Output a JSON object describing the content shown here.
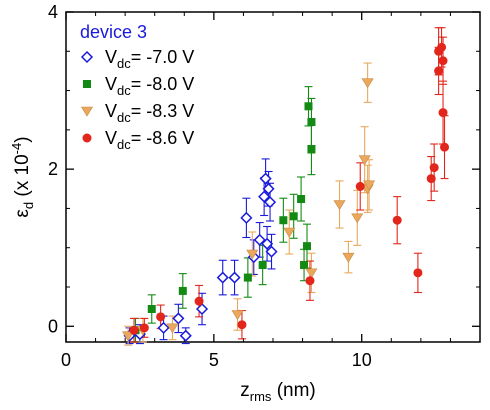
{
  "chart_data": {
    "type": "scatter",
    "title": "",
    "xlabel": {
      "main": "z",
      "sub": "rms",
      "rest": " (nm)"
    },
    "ylabel": {
      "main": "ε",
      "sub": "d",
      "rest": " (x 10",
      "sup": "-4",
      "close": ")"
    },
    "xlim": [
      0,
      14
    ],
    "ylim": [
      -0.2,
      4
    ],
    "xticks": [
      0,
      5,
      10
    ],
    "yticks": [
      0,
      2,
      4
    ],
    "xtick_labels": [
      "0",
      "5",
      "10"
    ],
    "ytick_labels": [
      "0",
      "2",
      "4"
    ],
    "grid": false,
    "legend": {
      "placement": "top-left",
      "header": "device 3",
      "header_color": "#1a1adb"
    },
    "series": [
      {
        "legend_main": "V",
        "legend_sub": "dc",
        "legend_rest": "= -7.0 V",
        "marker": "diamond-open",
        "color": "#1a1adb",
        "points": [
          {
            "x": 2.15,
            "y": -0.12,
            "err": 0.1
          },
          {
            "x": 2.5,
            "y": -0.1,
            "err": 0.12
          },
          {
            "x": 3.3,
            "y": -0.02,
            "err": 0.15
          },
          {
            "x": 3.8,
            "y": 0.1,
            "err": 0.18
          },
          {
            "x": 4.05,
            "y": -0.12,
            "err": 0.1
          },
          {
            "x": 4.6,
            "y": 0.22,
            "err": 0.2
          },
          {
            "x": 5.3,
            "y": 0.62,
            "err": 0.22
          },
          {
            "x": 5.7,
            "y": 0.62,
            "err": 0.22
          },
          {
            "x": 6.1,
            "y": 1.38,
            "err": 0.25
          },
          {
            "x": 6.35,
            "y": 0.88,
            "err": 0.22
          },
          {
            "x": 6.55,
            "y": 1.1,
            "err": 0.22
          },
          {
            "x": 6.7,
            "y": 1.65,
            "err": 0.24
          },
          {
            "x": 6.75,
            "y": 1.88,
            "err": 0.25
          },
          {
            "x": 6.8,
            "y": 1.05,
            "err": 0.22
          },
          {
            "x": 6.85,
            "y": 1.75,
            "err": 0.22
          },
          {
            "x": 6.9,
            "y": 1.58,
            "err": 0.24
          },
          {
            "x": 6.95,
            "y": 0.95,
            "err": 0.22
          }
        ]
      },
      {
        "legend_main": "V",
        "legend_sub": "dc",
        "legend_rest": "= -8.0 V",
        "marker": "square-filled",
        "color": "#138a13",
        "points": [
          {
            "x": 2.35,
            "y": -0.05,
            "err": 0.15
          },
          {
            "x": 2.9,
            "y": 0.22,
            "err": 0.18
          },
          {
            "x": 3.95,
            "y": 0.45,
            "err": 0.22
          },
          {
            "x": 6.15,
            "y": 0.62,
            "err": 0.25
          },
          {
            "x": 6.65,
            "y": 0.78,
            "err": 0.25
          },
          {
            "x": 7.35,
            "y": 1.35,
            "err": 0.28
          },
          {
            "x": 7.7,
            "y": 1.4,
            "err": 0.28
          },
          {
            "x": 7.95,
            "y": 1.62,
            "err": 0.28
          },
          {
            "x": 8.05,
            "y": 0.78,
            "err": 0.2
          },
          {
            "x": 8.15,
            "y": 1.02,
            "err": 0.28
          },
          {
            "x": 8.2,
            "y": 2.8,
            "err": 0.25
          },
          {
            "x": 8.3,
            "y": 2.6,
            "err": 0.3
          },
          {
            "x": 8.3,
            "y": 2.25,
            "err": 0.32
          }
        ]
      },
      {
        "legend_main": "V",
        "legend_sub": "dc",
        "legend_rest": "= -8.3 V",
        "marker": "triangle-down-filled",
        "color": "#eaa85e",
        "points": [
          {
            "x": 2.1,
            "y": -0.12,
            "err": 0.12
          },
          {
            "x": 2.6,
            "y": -0.05,
            "err": 0.15
          },
          {
            "x": 3.6,
            "y": -0.02,
            "err": 0.15
          },
          {
            "x": 5.8,
            "y": 0.15,
            "err": 0.2
          },
          {
            "x": 6.3,
            "y": 0.92,
            "err": 0.28
          },
          {
            "x": 7.55,
            "y": 1.2,
            "err": 0.28
          },
          {
            "x": 8.3,
            "y": 0.68,
            "err": 0.25
          },
          {
            "x": 9.25,
            "y": 1.55,
            "err": 0.3
          },
          {
            "x": 9.55,
            "y": 0.88,
            "err": 0.2
          },
          {
            "x": 9.85,
            "y": 1.38,
            "err": 0.35
          },
          {
            "x": 10.1,
            "y": 2.12,
            "err": 0.42
          },
          {
            "x": 10.2,
            "y": 1.75,
            "err": 0.3
          },
          {
            "x": 10.2,
            "y": 3.1,
            "err": 0.25
          },
          {
            "x": 10.25,
            "y": 1.8,
            "err": 0.32
          }
        ]
      },
      {
        "legend_main": "V",
        "legend_sub": "dc",
        "legend_rest": "= -8.6 V",
        "marker": "circle-filled",
        "color": "#e3261b",
        "points": [
          {
            "x": 2.3,
            "y": -0.05,
            "err": 0.15
          },
          {
            "x": 2.65,
            "y": -0.02,
            "err": 0.12
          },
          {
            "x": 3.2,
            "y": 0.12,
            "err": 0.15
          },
          {
            "x": 4.5,
            "y": 0.32,
            "err": 0.2
          },
          {
            "x": 5.95,
            "y": 0.02,
            "err": 0.18
          },
          {
            "x": 8.25,
            "y": 0.58,
            "err": 0.25
          },
          {
            "x": 9.95,
            "y": 1.78,
            "err": 0.3
          },
          {
            "x": 11.2,
            "y": 1.35,
            "err": 0.3
          },
          {
            "x": 11.9,
            "y": 0.68,
            "err": 0.25
          },
          {
            "x": 12.35,
            "y": 1.88,
            "err": 0.28
          },
          {
            "x": 12.45,
            "y": 2.02,
            "err": 0.3
          },
          {
            "x": 12.6,
            "y": 3.25,
            "err": 0.3
          },
          {
            "x": 12.6,
            "y": 3.5,
            "err": 0.3
          },
          {
            "x": 12.7,
            "y": 3.55,
            "err": 0.25
          },
          {
            "x": 12.75,
            "y": 3.38,
            "err": 0.3
          },
          {
            "x": 12.75,
            "y": 2.72,
            "err": 0.4
          },
          {
            "x": 12.8,
            "y": 2.28,
            "err": 0.4
          }
        ]
      }
    ]
  }
}
